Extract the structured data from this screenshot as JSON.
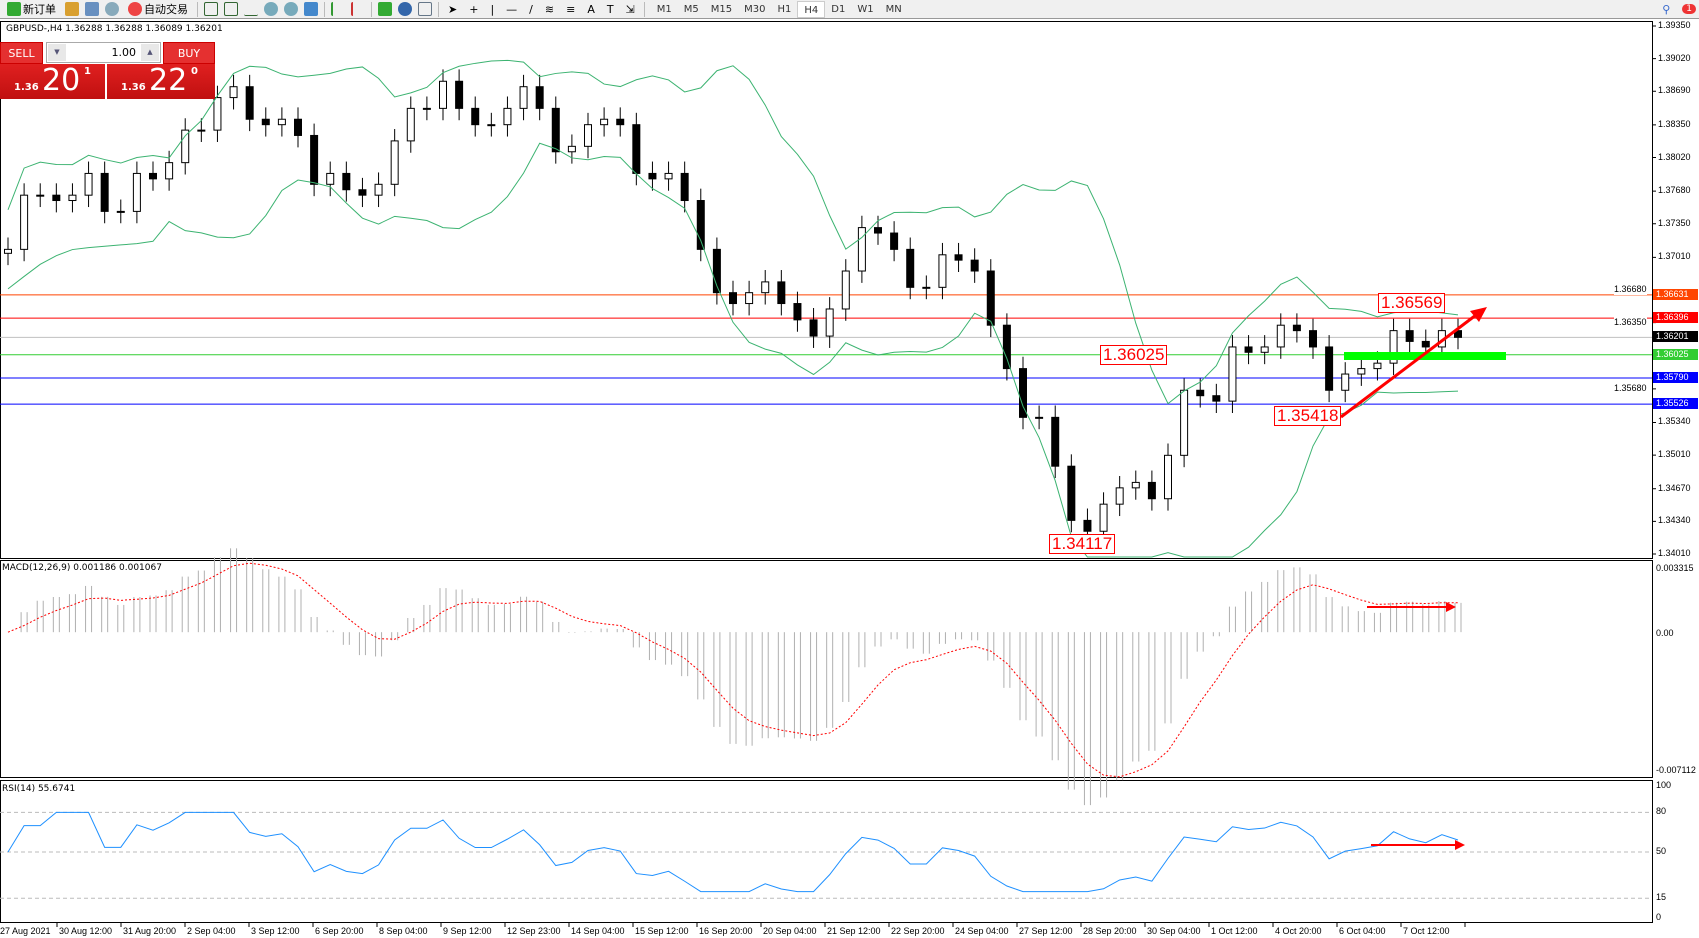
{
  "toolbar": {
    "new_order": "新订单",
    "auto_trading": "自动交易",
    "timeframes": [
      "M1",
      "M5",
      "M15",
      "M30",
      "H1",
      "H4",
      "D1",
      "W1",
      "MN"
    ],
    "active_timeframe": "H4",
    "notification_count": "1",
    "icons": [
      "new-order-icon",
      "navigator-icon",
      "history-icon",
      "signal-icon",
      "auto-trading-icon",
      "bar-chart-icon",
      "candlestick-icon",
      "line-chart-icon",
      "zoom-in-icon",
      "zoom-out-icon",
      "tile-windows-icon",
      "scroll-icon",
      "shift-icon",
      "indicators-icon",
      "periods-icon",
      "templates-icon",
      "cursor-icon",
      "crosshair-icon",
      "vertical-line-icon",
      "horizontal-line-icon",
      "trendline-icon",
      "fibo-icon",
      "channel-icon",
      "text-icon",
      "label-icon",
      "arrows-icon",
      "search-icon",
      "chat-icon"
    ]
  },
  "symbol_info": "GBPUSD-,H4  1.36288 1.36288 1.36089 1.36201",
  "trade_panel": {
    "sell": "SELL",
    "buy": "BUY",
    "lot": "1.00",
    "sell_prefix": "1.36",
    "sell_big": "20",
    "sell_pip": "1",
    "buy_prefix": "1.36",
    "buy_big": "22",
    "buy_pip": "0"
  },
  "chart_data": {
    "type": "candlestick",
    "price_axis": [
      "1.39350",
      "1.39020",
      "1.38690",
      "1.38350",
      "1.38020",
      "1.37680",
      "1.37350",
      "1.37010",
      "1.36680",
      "1.36350",
      "1.35680",
      "1.35340",
      "1.35010",
      "1.34670",
      "1.34340",
      "1.34010"
    ],
    "ylim": [
      1.3401,
      1.3935
    ],
    "closes": [
      1.37091,
      1.37639,
      1.37639,
      1.37585,
      1.37639,
      1.37859,
      1.37475,
      1.37475,
      1.37859,
      1.37804,
      1.37968,
      1.38297,
      1.38297,
      1.38626,
      1.38736,
      1.38407,
      1.38352,
      1.38407,
      1.38243,
      1.37749,
      1.37859,
      1.37694,
      1.37639,
      1.37749,
      1.38188,
      1.38517,
      1.38517,
      1.38791,
      1.38517,
      1.38352,
      1.38352,
      1.38517,
      1.38736,
      1.38517,
      1.38078,
      1.38133,
      1.38352,
      1.38407,
      1.38352,
      1.37859,
      1.37804,
      1.37859,
      1.37585,
      1.37091,
      1.36653,
      1.36543,
      1.36653,
      1.36762,
      1.36543,
      1.36378,
      1.36214,
      1.36488,
      1.36872,
      1.37311,
      1.37256,
      1.37091,
      1.36707,
      1.36707,
      1.37036,
      1.36982,
      1.36872,
      1.36324,
      1.35885,
      1.35392,
      1.35392,
      1.34898,
      1.3435,
      1.3424,
      1.34514,
      1.34679,
      1.34734,
      1.34569,
      1.35008,
      1.35666,
      1.35611,
      1.35556,
      1.36104,
      1.3605,
      1.36104,
      1.36324,
      1.36269,
      1.36104,
      1.35666,
      1.3583,
      1.35885,
      1.3594,
      1.36269,
      1.3616,
      1.36104,
      1.36269,
      1.36201
    ],
    "hlines": [
      {
        "price": "1.36631",
        "color": "#ff4500"
      },
      {
        "price": "1.36396",
        "color": "#ff0000"
      },
      {
        "price": "1.36201",
        "color": "#000000",
        "line": "#c0c0c0"
      },
      {
        "price": "1.36025",
        "color": "#32cd32"
      },
      {
        "price": "1.35790",
        "color": "#0000ff"
      },
      {
        "price": "1.35526",
        "color": "#0000ff"
      }
    ],
    "annotations": [
      "1.36569",
      "1.36025",
      "1.35418",
      "1.34117"
    ],
    "bollinger_color": "#3cb371",
    "macd": {
      "label": "MACD(12,26,9) 0.001186 0.001067",
      "axis": [
        "0.003315",
        "0.00",
        "-0.007112"
      ],
      "range": [
        -0.007112,
        0.003315
      ],
      "signal_color": "#ff0000"
    },
    "rsi": {
      "label": "RSI(14) 55.6741",
      "axis": [
        "100",
        "80",
        "50",
        "15",
        "0"
      ],
      "levels": [
        80,
        50,
        15
      ],
      "color": "#1e90ff"
    },
    "time_axis": [
      "27 Aug 2021",
      "30 Aug 12:00",
      "31 Aug 20:00",
      "2 Sep 04:00",
      "3 Sep 12:00",
      "6 Sep 20:00",
      "8 Sep 04:00",
      "9 Sep 12:00",
      "12 Sep 23:00",
      "14 Sep 04:00",
      "15 Sep 12:00",
      "16 Sep 20:00",
      "20 Sep 04:00",
      "21 Sep 12:00",
      "22 Sep 20:00",
      "24 Sep 04:00",
      "27 Sep 12:00",
      "28 Sep 20:00",
      "30 Sep 04:00",
      "1 Oct 12:00",
      "4 Oct 20:00",
      "6 Oct 04:00",
      "7 Oct 12:00"
    ]
  }
}
